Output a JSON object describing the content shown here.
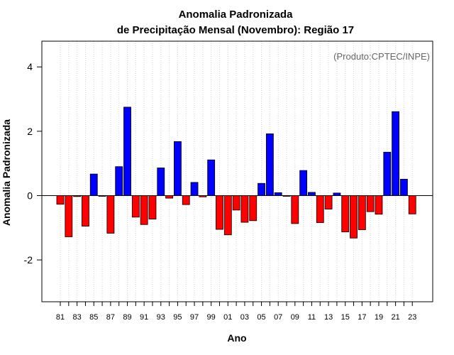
{
  "chart_data": {
    "type": "bar",
    "title": "Anomalia Padronizada",
    "subtitle": "de Precipitação Mensal (Novembro): Região 17",
    "xlabel": "Ano",
    "ylabel": "Anomalia Padronizada",
    "source_note": "(Produto:CPTEC/INPE)",
    "ylim": [
      -3.3,
      4.8
    ],
    "yticks": [
      -2,
      0,
      2,
      4
    ],
    "xtick_labels": [
      "81",
      "83",
      "85",
      "87",
      "89",
      "91",
      "93",
      "95",
      "97",
      "99",
      "01",
      "03",
      "05",
      "07",
      "09",
      "11",
      "13",
      "15",
      "17",
      "19",
      "21",
      "23"
    ],
    "categories": [
      "1981",
      "1982",
      "1983",
      "1984",
      "1985",
      "1986",
      "1987",
      "1988",
      "1989",
      "1990",
      "1991",
      "1992",
      "1993",
      "1994",
      "1995",
      "1996",
      "1997",
      "1998",
      "1999",
      "2000",
      "2001",
      "2002",
      "2003",
      "2004",
      "2005",
      "2006",
      "2007",
      "2008",
      "2009",
      "2010",
      "2011",
      "2012",
      "2013",
      "2014",
      "2015",
      "2016",
      "2017",
      "2018",
      "2019",
      "2020",
      "2021",
      "2022",
      "2023"
    ],
    "values": [
      -0.27,
      -1.28,
      -0.03,
      -0.95,
      0.67,
      -0.01,
      -1.17,
      0.9,
      2.75,
      -0.67,
      -0.9,
      -0.73,
      0.86,
      -0.08,
      1.68,
      -0.28,
      0.41,
      -0.04,
      1.11,
      -1.05,
      -1.22,
      -0.45,
      -0.83,
      -0.78,
      0.38,
      1.92,
      0.09,
      -0.02,
      -0.87,
      0.78,
      0.1,
      -0.84,
      -0.42,
      0.08,
      -1.13,
      -1.32,
      -1.06,
      -0.5,
      -0.58,
      1.35,
      2.61,
      0.51,
      -0.57
    ],
    "colors": {
      "positive": "#0000ff",
      "negative": "#ff0000",
      "bar_stroke": "#000000",
      "grid": "#d3d3d3"
    },
    "grid": true,
    "grid_style": "dotted vertical"
  }
}
